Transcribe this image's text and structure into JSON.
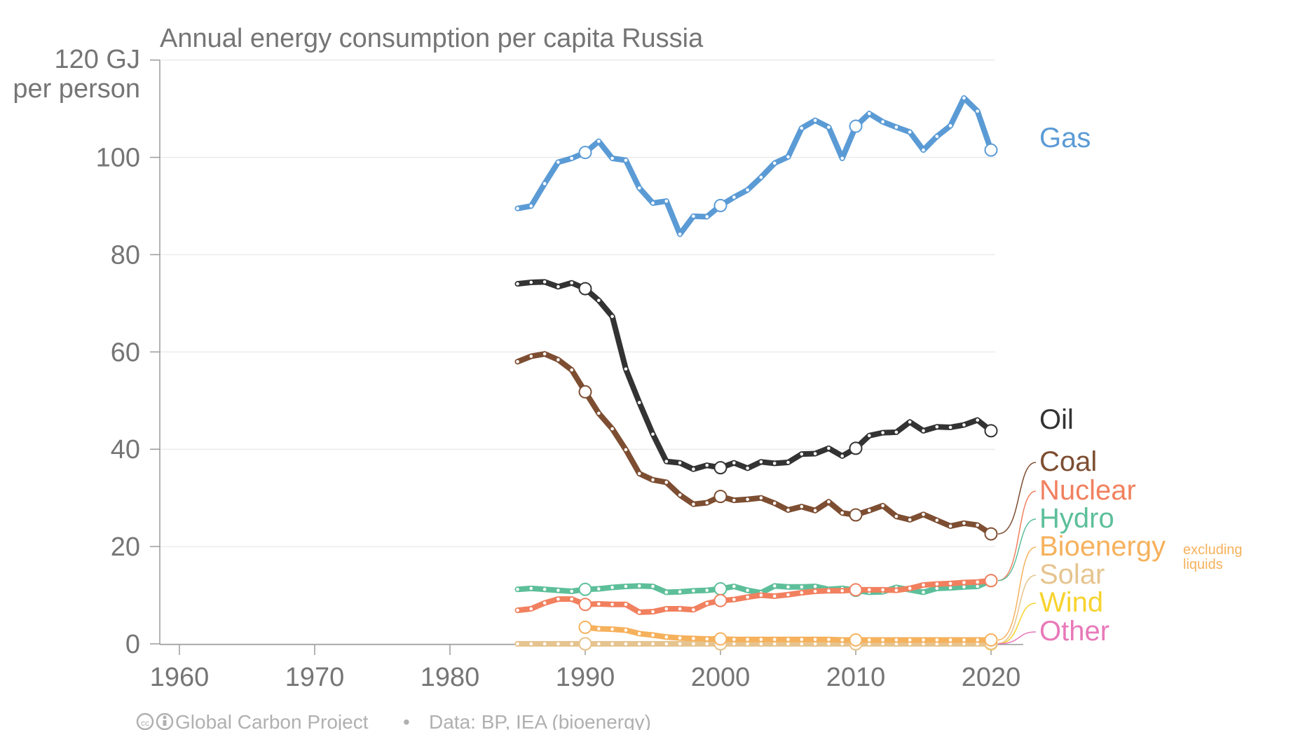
{
  "chart_data": {
    "type": "line",
    "title": "Annual energy consumption per capita Russia",
    "ylabel_top": "120 GJ",
    "ylabel_bottom": "per person",
    "xlim": [
      1957,
      2022
    ],
    "ylim": [
      0,
      120
    ],
    "x_ticks": [
      "1960",
      "1970",
      "1980",
      "1990",
      "2000",
      "2010",
      "2020"
    ],
    "y_ticks": [
      "0",
      "20",
      "40",
      "60",
      "80",
      "100"
    ],
    "grid": true,
    "legend": "end-labels-right",
    "years": [
      1985,
      1986,
      1987,
      1988,
      1989,
      1990,
      1991,
      1992,
      1993,
      1994,
      1995,
      1996,
      1997,
      1998,
      1999,
      2000,
      2001,
      2002,
      2003,
      2004,
      2005,
      2006,
      2007,
      2008,
      2009,
      2010,
      2011,
      2012,
      2013,
      2014,
      2015,
      2016,
      2017,
      2018,
      2019,
      2020
    ],
    "series": [
      {
        "name": "Gas",
        "color": "#5b9bd5",
        "values": [
          89.5,
          90.0,
          94.6,
          99.0,
          99.8,
          101.0,
          103.3,
          99.8,
          99.4,
          93.7,
          90.6,
          91.0,
          84.2,
          87.9,
          87.8,
          90.1,
          91.8,
          93.3,
          95.9,
          98.8,
          100.1,
          106.0,
          107.6,
          106.2,
          99.8,
          106.4,
          109.0,
          107.3,
          106.2,
          105.2,
          101.5,
          104.3,
          106.5,
          112.2,
          109.5,
          101.5
        ]
      },
      {
        "name": "Oil",
        "color": "#333333",
        "values": [
          74.0,
          74.3,
          74.4,
          73.4,
          74.2,
          73.0,
          70.6,
          67.3,
          56.5,
          49.6,
          43.1,
          37.5,
          37.2,
          35.9,
          36.7,
          36.2,
          37.2,
          36.1,
          37.4,
          37.1,
          37.3,
          39.0,
          39.1,
          40.2,
          38.6,
          40.2,
          42.8,
          43.4,
          43.5,
          45.6,
          43.8,
          44.6,
          44.5,
          45.0,
          46.0,
          43.8
        ]
      },
      {
        "name": "Coal",
        "color": "#7d4e32",
        "values": [
          58.0,
          59.1,
          59.6,
          58.4,
          56.3,
          51.8,
          47.4,
          44.2,
          39.9,
          35.0,
          33.7,
          33.2,
          30.6,
          28.7,
          29.0,
          30.3,
          29.5,
          29.7,
          30.0,
          28.9,
          27.5,
          28.2,
          27.4,
          29.2,
          26.9,
          26.5,
          27.4,
          28.4,
          26.2,
          25.5,
          26.6,
          25.4,
          24.2,
          24.8,
          24.4,
          22.6
        ]
      },
      {
        "name": "Nuclear",
        "color": "#f1805f",
        "values": [
          6.9,
          7.2,
          8.4,
          9.2,
          9.2,
          8.1,
          8.2,
          8.1,
          8.1,
          6.5,
          6.6,
          7.2,
          7.2,
          7.0,
          8.3,
          8.9,
          9.1,
          9.6,
          10.0,
          9.8,
          10.1,
          10.5,
          10.8,
          10.9,
          10.9,
          11.1,
          11.1,
          11.1,
          11.0,
          11.4,
          12.1,
          12.3,
          12.4,
          12.6,
          12.7,
          13.0
        ]
      },
      {
        "name": "Hydro",
        "color": "#5dbf9a",
        "values": [
          11.2,
          11.4,
          11.2,
          11.0,
          10.8,
          11.2,
          11.3,
          11.6,
          11.8,
          11.9,
          11.8,
          10.6,
          10.7,
          10.9,
          11.0,
          11.3,
          11.8,
          11.0,
          10.5,
          11.9,
          11.7,
          11.7,
          11.8,
          11.2,
          11.4,
          11.0,
          10.6,
          10.7,
          11.6,
          11.1,
          10.6,
          11.4,
          11.5,
          11.7,
          11.8,
          13.0
        ]
      },
      {
        "name": "Bioenergy",
        "color": "#f6b15c",
        "values": [
          null,
          null,
          null,
          null,
          null,
          3.4,
          3.1,
          3.0,
          2.8,
          2.1,
          1.8,
          1.4,
          1.2,
          1.1,
          1.0,
          1.0,
          0.9,
          0.9,
          0.9,
          0.9,
          0.9,
          0.9,
          0.9,
          0.9,
          0.8,
          0.8,
          0.8,
          0.8,
          0.8,
          0.8,
          0.8,
          0.8,
          0.8,
          0.8,
          0.8,
          0.8
        ]
      },
      {
        "name": "Solar",
        "color": "#e6c48f",
        "values": [
          0,
          0,
          0,
          0,
          0,
          0,
          0,
          0,
          0,
          0,
          0,
          0,
          0,
          0,
          0,
          0,
          0,
          0,
          0,
          0,
          0,
          0,
          0,
          0,
          0,
          0,
          0,
          0,
          0,
          0,
          0,
          0,
          0,
          0,
          0,
          0.1
        ]
      },
      {
        "name": "Wind",
        "color": "#f7d32e",
        "values": [
          0,
          0,
          0,
          0,
          0,
          0,
          0,
          0,
          0,
          0,
          0,
          0,
          0,
          0,
          0,
          0,
          0,
          0,
          0,
          0,
          0,
          0,
          0,
          0,
          0,
          0,
          0,
          0,
          0,
          0,
          0,
          0,
          0,
          0,
          0,
          0
        ]
      },
      {
        "name": "Other",
        "color": "#e879b9",
        "values": [
          0,
          0,
          0,
          0,
          0,
          0,
          0,
          0,
          0,
          0,
          0,
          0,
          0,
          0,
          0,
          0,
          0,
          0,
          0,
          0,
          0,
          0,
          0,
          0,
          0,
          0,
          0,
          0,
          0,
          0,
          0,
          0,
          0,
          0,
          0,
          0
        ]
      }
    ],
    "annotations": {
      "bioenergy_note_1": "excluding",
      "bioenergy_note_2": "liquids"
    },
    "footer": {
      "logo": "cc-by-icon",
      "source": "Global Carbon Project",
      "separator": "•",
      "data": "Data: BP, IEA (bioenergy)"
    }
  }
}
